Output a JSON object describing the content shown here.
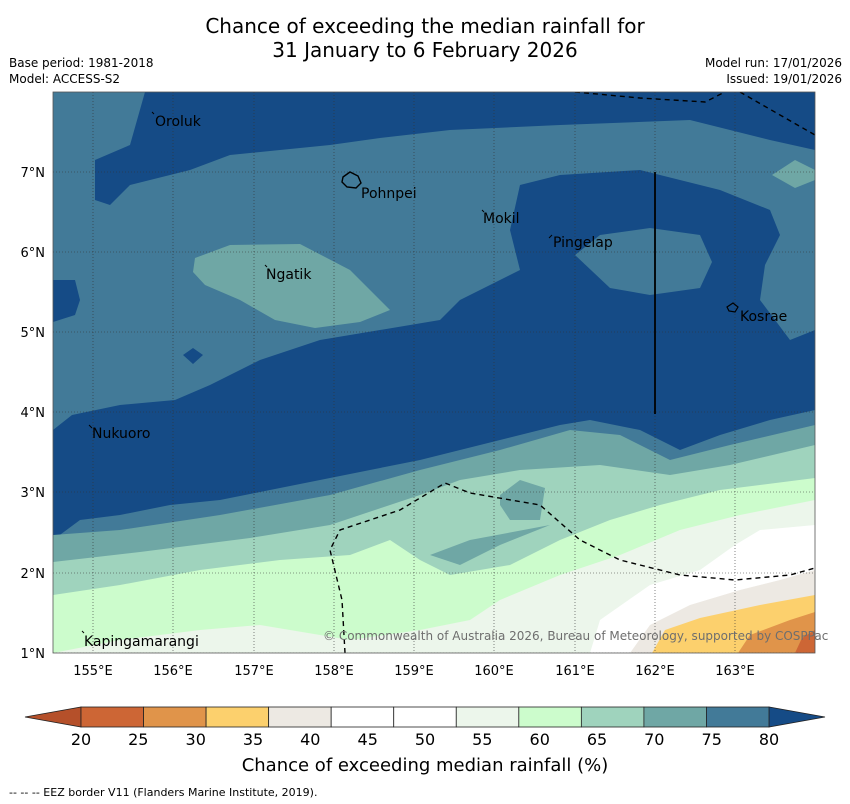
{
  "header": {
    "title_line1": "Chance of exceeding the median rainfall for",
    "title_line2": "31 January to 6 February 2026",
    "base_period": "Base period: 1981-2018",
    "model": "Model: ACCESS-S2",
    "model_run": "Model run: 17/01/2026",
    "issued": "Issued: 19/01/2026"
  },
  "map": {
    "lat_ticks": [
      "7°N",
      "6°N",
      "5°N",
      "4°N",
      "3°N",
      "2°N",
      "1°N"
    ],
    "lon_ticks": [
      "155°E",
      "156°E",
      "157°E",
      "158°E",
      "159°E",
      "160°E",
      "161°E",
      "162°E",
      "163°E"
    ],
    "places": [
      "Oroluk",
      "Pohnpei",
      "Mokil",
      "Pingelap",
      "Ngatik",
      "Kosrae",
      "Nukuoro",
      "Kapingamarangi"
    ],
    "copyright": "© Commonwealth of Australia 2026, Bureau of Meteorology, supported by COSPPac"
  },
  "colorbar": {
    "ticks": [
      "20",
      "25",
      "30",
      "35",
      "40",
      "45",
      "50",
      "55",
      "60",
      "65",
      "70",
      "75",
      "80"
    ],
    "colors": [
      "#b5502a",
      "#cd6635",
      "#e0944a",
      "#fcd06d",
      "#ede9e3",
      "#ffffff",
      "#ffffff",
      "#ecf6eb",
      "#ccfccc",
      "#9fd3bd",
      "#6fa7a5",
      "#427a98",
      "#154b86"
    ],
    "label": "Chance of exceeding median rainfall (%)"
  },
  "footer": {
    "legend_text": "--  --  -- EEZ border V11 (Flanders Marine Institute, 2019)."
  }
}
